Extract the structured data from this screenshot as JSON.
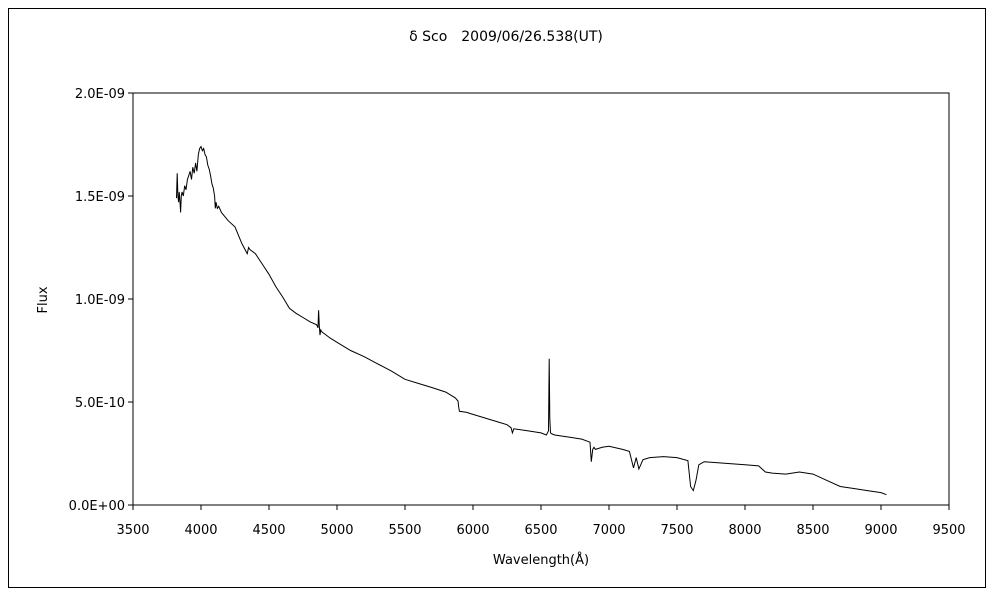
{
  "chart_data": {
    "type": "line",
    "title": "δ Sco　2009/06/26.538(UT)",
    "xlabel": "Wavelength(Å)",
    "ylabel": "Flux",
    "xlim": [
      3500,
      9500
    ],
    "ylim": [
      0,
      2e-09
    ],
    "x_ticks": [
      "3500",
      "4000",
      "4500",
      "5000",
      "5500",
      "6000",
      "6500",
      "7000",
      "7500",
      "8000",
      "8500",
      "9000",
      "9500"
    ],
    "y_ticks": [
      "0.0E+00",
      "5.0E-10",
      "1.0E-09",
      "1.5E-09",
      "2.0E-09"
    ],
    "grid": false,
    "legend": "none",
    "line_color": "#000000",
    "series": [
      {
        "x": [
          3820,
          3825,
          3830,
          3835,
          3840,
          3845,
          3850,
          3855,
          3860,
          3870,
          3880,
          3890,
          3900,
          3910,
          3920,
          3930,
          3940,
          3950,
          3960,
          3970,
          3980,
          3990,
          4000,
          4010,
          4020,
          4030,
          4040,
          4050,
          4060,
          4070,
          4080,
          4090,
          4100,
          4105,
          4110,
          4120,
          4130,
          4150,
          4200,
          4250,
          4300,
          4340,
          4350,
          4360,
          4400,
          4450,
          4500,
          4550,
          4600,
          4650,
          4700,
          4750,
          4800,
          4850,
          4860,
          4865,
          4870,
          4875,
          4880,
          4890,
          4900,
          4950,
          5000,
          5050,
          5100,
          5200,
          5300,
          5400,
          5500,
          5600,
          5700,
          5800,
          5870,
          5890,
          5895,
          5900,
          5950,
          6000,
          6100,
          6200,
          6250,
          6280,
          6290,
          6300,
          6400,
          6500,
          6540,
          6555,
          6560,
          6565,
          6570,
          6580,
          6600,
          6700,
          6800,
          6860,
          6870,
          6880,
          6890,
          6900,
          6950,
          7000,
          7100,
          7150,
          7180,
          7200,
          7220,
          7250,
          7300,
          7400,
          7500,
          7580,
          7600,
          7620,
          7640,
          7660,
          7700,
          7800,
          7900,
          8000,
          8100,
          8150,
          8200,
          8300,
          8400,
          8500,
          8600,
          8700,
          8800,
          8900,
          9000,
          9040
        ],
        "y": [
          1.49e-09,
          1.61e-09,
          1.5e-09,
          1.47e-09,
          1.52e-09,
          1.48e-09,
          1.42e-09,
          1.5e-09,
          1.52e-09,
          1.5e-09,
          1.55e-09,
          1.53e-09,
          1.58e-09,
          1.6e-09,
          1.62e-09,
          1.58e-09,
          1.64e-09,
          1.61e-09,
          1.66e-09,
          1.62e-09,
          1.7e-09,
          1.73e-09,
          1.74e-09,
          1.72e-09,
          1.73e-09,
          1.7e-09,
          1.69e-09,
          1.65e-09,
          1.63e-09,
          1.6e-09,
          1.56e-09,
          1.54e-09,
          1.5e-09,
          1.44e-09,
          1.47e-09,
          1.44e-09,
          1.45e-09,
          1.42e-09,
          1.38e-09,
          1.35e-09,
          1.27e-09,
          1.22e-09,
          1.25e-09,
          1.24e-09,
          1.22e-09,
          1.17e-09,
          1.12e-09,
          1.06e-09,
          1.01e-09,
          9.55e-10,
          9.3e-10,
          9.1e-10,
          8.9e-10,
          8.75e-10,
          8.6e-10,
          9.45e-10,
          8.7e-10,
          8.25e-10,
          8.5e-10,
          8.4e-10,
          8.35e-10,
          8.1e-10,
          7.9e-10,
          7.7e-10,
          7.5e-10,
          7.2e-10,
          6.85e-10,
          6.5e-10,
          6.1e-10,
          5.9e-10,
          5.7e-10,
          5.48e-10,
          5.2e-10,
          5.05e-10,
          4.75e-10,
          4.55e-10,
          4.5e-10,
          4.4e-10,
          4.2e-10,
          4e-10,
          3.9e-10,
          3.75e-10,
          3.5e-10,
          3.7e-10,
          3.6e-10,
          3.5e-10,
          3.4e-10,
          3.6e-10,
          7.1e-10,
          4.2e-10,
          3.5e-10,
          3.45e-10,
          3.4e-10,
          3.3e-10,
          3.2e-10,
          3.05e-10,
          2.1e-10,
          2.7e-10,
          2.8e-10,
          2.7e-10,
          2.8e-10,
          2.85e-10,
          2.7e-10,
          2.6e-10,
          1.8e-10,
          2.3e-10,
          1.75e-10,
          2.2e-10,
          2.3e-10,
          2.35e-10,
          2.3e-10,
          2.15e-10,
          9e-11,
          7e-11,
          1.2e-10,
          1.95e-10,
          2.1e-10,
          2.05e-10,
          2e-10,
          1.95e-10,
          1.9e-10,
          1.6e-10,
          1.55e-10,
          1.5e-10,
          1.6e-10,
          1.5e-10,
          1.2e-10,
          9e-11,
          8e-11,
          7e-11,
          6e-11,
          5e-11
        ]
      }
    ]
  }
}
